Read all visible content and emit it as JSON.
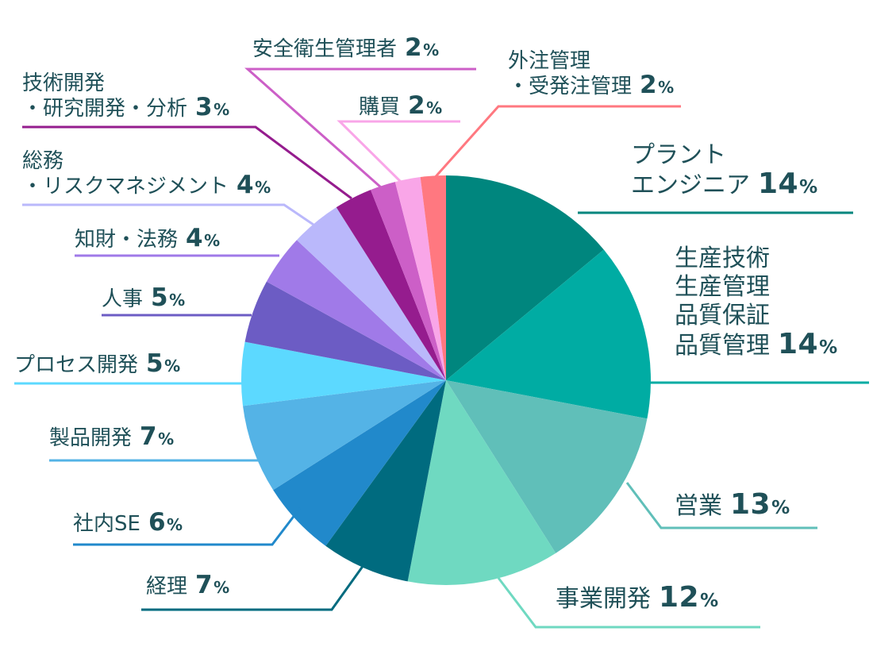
{
  "chart_data": {
    "type": "pie",
    "unit": "%",
    "slices": [
      {
        "label": "プラント\nエンジニア",
        "value": 14,
        "color": "#00867e"
      },
      {
        "label": "生産技術\n生産管理\n品質保証\n品質管理",
        "value": 14,
        "color": "#00aca3"
      },
      {
        "label": "営業",
        "value": 13,
        "color": "#60bfb9"
      },
      {
        "label": "事業開発",
        "value": 12,
        "color": "#6fd9c1"
      },
      {
        "label": "経理",
        "value": 7,
        "color": "#006b7f"
      },
      {
        "label": "社内SE",
        "value": 6,
        "color": "#2189cb"
      },
      {
        "label": "製品開発",
        "value": 7,
        "color": "#54b3e6"
      },
      {
        "label": "プロセス開発",
        "value": 5,
        "color": "#5cd9ff"
      },
      {
        "label": "人事",
        "value": 5,
        "color": "#6c5cc4"
      },
      {
        "label": "知財・法務",
        "value": 4,
        "color": "#a07ae8"
      },
      {
        "label": "総務\n・リスクマネジメント",
        "value": 4,
        "color": "#bab8fb"
      },
      {
        "label": "技術開発\n・研究開発・分析",
        "value": 3,
        "color": "#951c8e"
      },
      {
        "label": "安全衛生管理者",
        "value": 2,
        "color": "#cc5fc7"
      },
      {
        "label": "購買",
        "value": 2,
        "color": "#f9a6e8"
      },
      {
        "label": "外注管理\n・受発注管理",
        "value": 2,
        "color": "#ff7880"
      }
    ]
  }
}
